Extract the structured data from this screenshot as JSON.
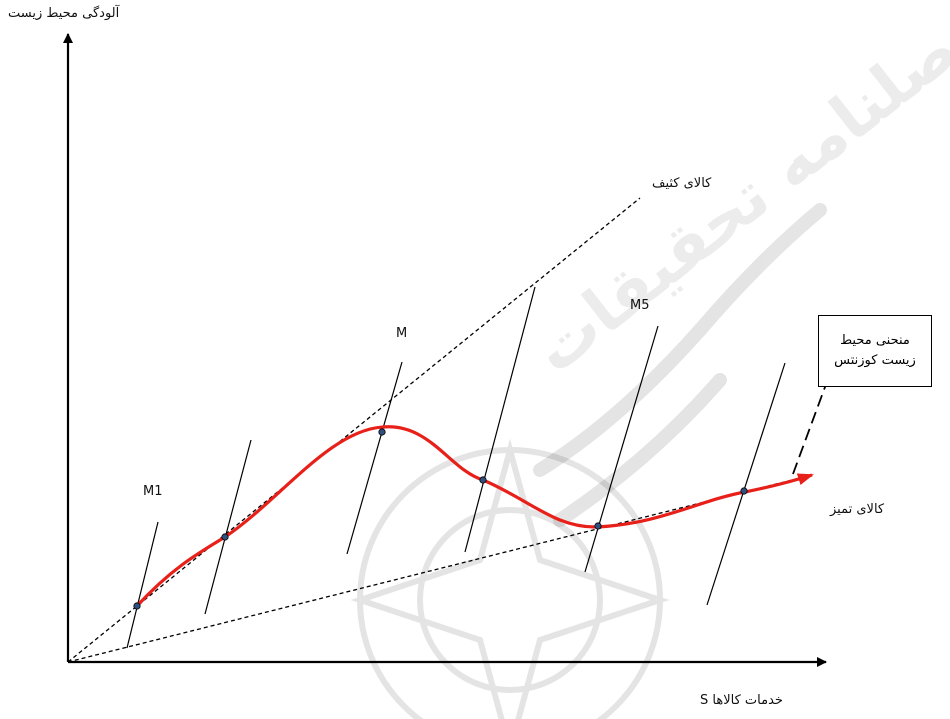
{
  "labels": {
    "y_axis": "آلودگی محیط زیست",
    "x_axis": "خدمات کالاها  S",
    "dirty_goods": "کالای کثیف",
    "clean_goods": "کالای تمیز",
    "curve_name": "منحنی محیط زیست کوزنتس",
    "m1": "M1",
    "m": "M",
    "m5": "M5"
  },
  "colors": {
    "curve": "#e8201a",
    "axes": "#000000",
    "dashed": "#000000",
    "points": "#2f4f7f"
  },
  "watermark_text": "فصلنامه تحقیقات"
}
